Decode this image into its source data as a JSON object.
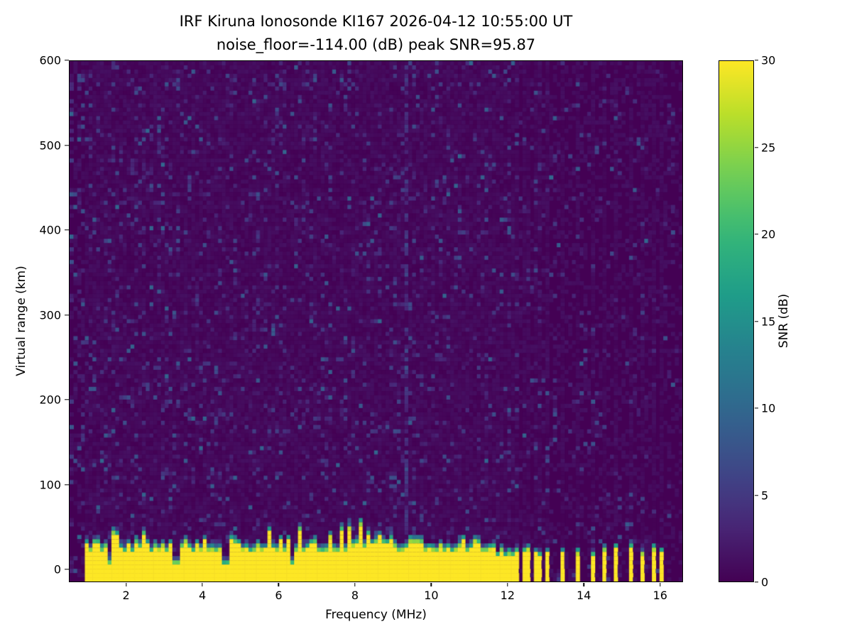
{
  "figure": {
    "title_line1": "IRF Kiruna Ionosonde KI167 2026-04-12 10:55:00  UT",
    "title_line2": "noise_floor=-114.00 (dB) peak SNR=95.87"
  },
  "chart_data": {
    "type": "heatmap",
    "title": "IRF Kiruna Ionosonde KI167 2026-04-12 10:55:00  UT",
    "subtitle": "noise_floor=-114.00 (dB) peak SNR=95.87",
    "station": "IRF Kiruna Ionosonde KI167",
    "timestamp_ut": "2026-04-12 10:55:00",
    "noise_floor_db": -114.0,
    "peak_snr_db": 95.87,
    "xlabel": "Frequency (MHz)",
    "ylabel": "Virtual range (km)",
    "xlim": [
      0.5,
      16.6
    ],
    "ylim": [
      -15,
      600
    ],
    "xticks": [
      2,
      4,
      6,
      8,
      10,
      12,
      14,
      16
    ],
    "yticks": [
      0,
      100,
      200,
      300,
      400,
      500,
      600
    ],
    "grid": false,
    "colormap": "viridis",
    "background_color": "#440154",
    "colorbar": {
      "label": "SNR (dB)",
      "min": 0,
      "max": 30,
      "ticks": [
        0,
        5,
        10,
        15,
        20,
        25,
        30
      ],
      "position": "right"
    },
    "features": {
      "seed": 167,
      "data_start_mhz": 0.92,
      "echo_band": {
        "description": "saturated near-range echo band (~30 dB) from ground/first returns",
        "continuous_until_mhz": 11.62,
        "top_km_base": 20,
        "top_km_jitter": 14,
        "value_db": 30
      },
      "notch_frequencies_mhz": [
        1.55,
        3.3,
        4.6,
        6.32
      ],
      "stripe_frequencies_mhz": [
        11.66,
        11.74,
        11.84,
        11.94,
        12.06,
        12.18,
        12.3,
        12.44,
        12.58,
        12.72,
        12.88,
        13.02,
        13.48,
        13.88,
        14.28,
        14.52,
        14.84,
        15.28,
        15.52,
        15.88,
        16.08
      ],
      "vertical_faint_line_mhz": 9.35,
      "noise": {
        "speckle_probability": 0.22,
        "hf_speckle_probability": 0.1,
        "speckle_max_db": 11
      }
    }
  }
}
